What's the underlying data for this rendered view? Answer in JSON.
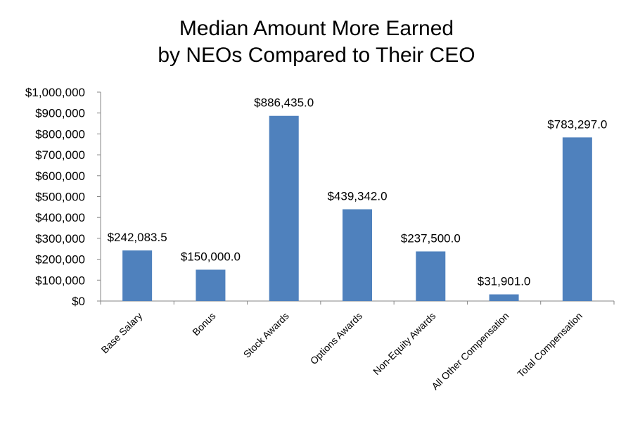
{
  "chart_data": {
    "type": "bar",
    "title_lines": [
      "Median Amount More Earned",
      "by NEOs Compared to Their CEO"
    ],
    "categories": [
      "Base Salary",
      "Bonus",
      "Stock Awards",
      "Options Awards",
      "Non-Equity Awards",
      "All Other Compensation",
      "Total Compensation"
    ],
    "values": [
      242083.5,
      150000.0,
      886435.0,
      439342.0,
      237500.0,
      31901.0,
      783297.0
    ],
    "data_labels": [
      "$242,083.5",
      "$150,000.0",
      "$886,435.0",
      "$439,342.0",
      "$237,500.0",
      "$31,901.0",
      "$783,297.0"
    ],
    "ylim": [
      0,
      1000000
    ],
    "yticks": [
      0,
      100000,
      200000,
      300000,
      400000,
      500000,
      600000,
      700000,
      800000,
      900000,
      1000000
    ],
    "ytick_labels": [
      "$0",
      "$100,000",
      "$200,000",
      "$300,000",
      "$400,000",
      "$500,000",
      "$600,000",
      "$700,000",
      "$800,000",
      "$900,000",
      "$1,000,000"
    ],
    "xlabel": "",
    "ylabel": "",
    "grid": false,
    "legend": "none",
    "bar_color": "#4F81BD",
    "axis_color": "#868686"
  }
}
